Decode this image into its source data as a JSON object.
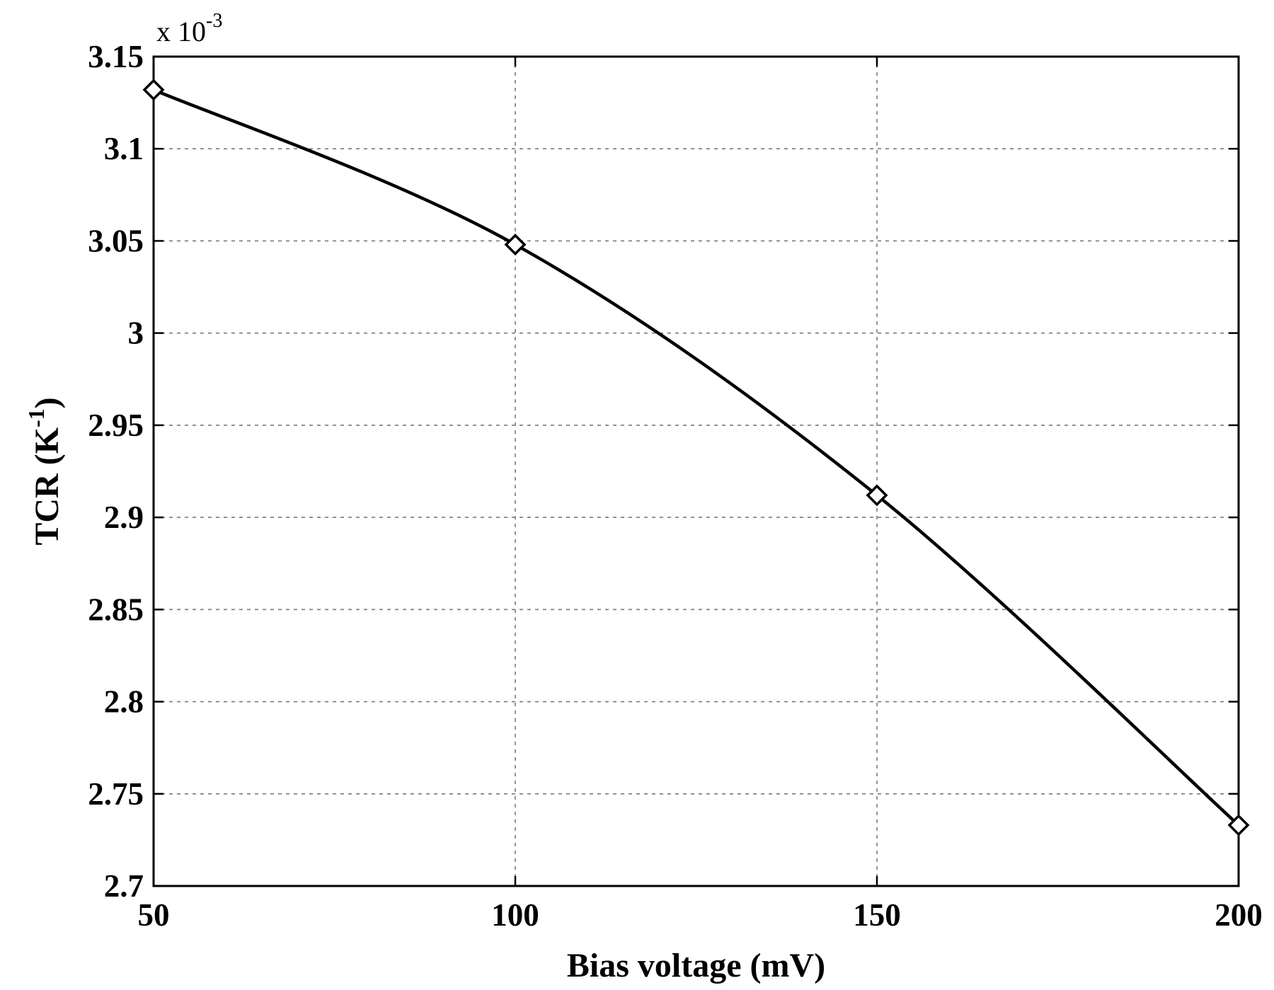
{
  "chart_data": {
    "type": "line",
    "xlabel": "Bias voltage (mV)",
    "ylabel_main": "TCR (K",
    "ylabel_sup": "-1",
    "ylabel_close": ")",
    "y_multiplier_base": "x 10",
    "y_multiplier_exp": "-3",
    "xlim": [
      50,
      200
    ],
    "ylim": [
      2.7,
      3.15
    ],
    "xticks": [
      50,
      100,
      150,
      200
    ],
    "xtick_labels": [
      "50",
      "100",
      "150",
      "200"
    ],
    "yticks": [
      2.7,
      2.75,
      2.8,
      2.85,
      2.9,
      2.95,
      3.0,
      3.05,
      3.1,
      3.15
    ],
    "ytick_labels": [
      "2.7",
      "2.75",
      "2.8",
      "2.85",
      "2.9",
      "2.95",
      "3",
      "3.05",
      "3.1",
      "3.15"
    ],
    "grid": true,
    "marker": "diamond",
    "line_color": "#000000",
    "x": [
      50,
      100,
      150,
      200
    ],
    "y": [
      3.132,
      3.048,
      2.912,
      2.733
    ]
  }
}
